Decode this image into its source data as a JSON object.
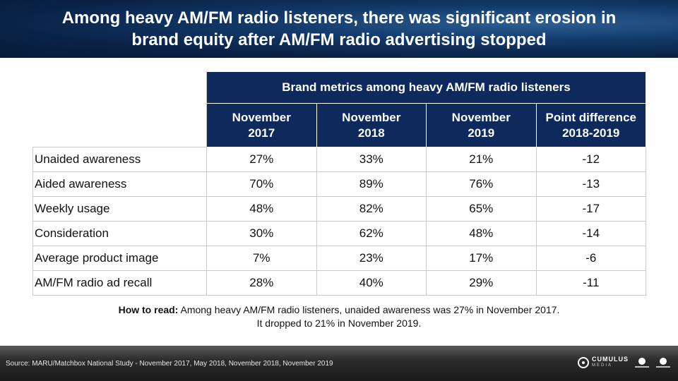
{
  "title": {
    "line1": "Among heavy AM/FM radio listeners, there was significant erosion in",
    "line2": "brand equity after AM/FM radio advertising stopped"
  },
  "table": {
    "group_header": "Brand metrics among heavy AM/FM radio listeners",
    "columns": [
      {
        "line1": "November",
        "line2": "2017"
      },
      {
        "line1": "November",
        "line2": "2018"
      },
      {
        "line1": "November",
        "line2": "2019"
      },
      {
        "line1": "Point difference",
        "line2": "2018-2019"
      }
    ],
    "rows": [
      {
        "label": "Unaided awareness",
        "values": [
          "27%",
          "33%",
          "21%",
          "-12"
        ]
      },
      {
        "label": "Aided awareness",
        "values": [
          "70%",
          "89%",
          "76%",
          "-13"
        ]
      },
      {
        "label": "Weekly usage",
        "values": [
          "48%",
          "82%",
          "65%",
          "-17"
        ]
      },
      {
        "label": "Consideration",
        "values": [
          "30%",
          "62%",
          "48%",
          "-14"
        ]
      },
      {
        "label": "Average product image",
        "values": [
          "7%",
          "23%",
          "17%",
          "-6"
        ]
      },
      {
        "label": "AM/FM radio ad recall",
        "values": [
          "28%",
          "40%",
          "29%",
          "-11"
        ]
      }
    ]
  },
  "note": {
    "lead": "How to read:",
    "line1": " Among heavy AM/FM radio listeners, unaided awareness was 27% in November 2017.",
    "line2": "It dropped to 21% in November 2019."
  },
  "footer": {
    "source": "Source: MARU/Matchbox National Study - November 2017, May 2018, November 2018, November 2019",
    "logo_cumulus": "CUMULUS",
    "logo_cumulus_sub": "MEDIA",
    "logo_second": "Cumulus Radio",
    "logo_third": "Westwood One"
  },
  "colors": {
    "header_navy": "#0e2a5c",
    "title_blue": "#123a6a",
    "grid": "#c9c9c9"
  }
}
